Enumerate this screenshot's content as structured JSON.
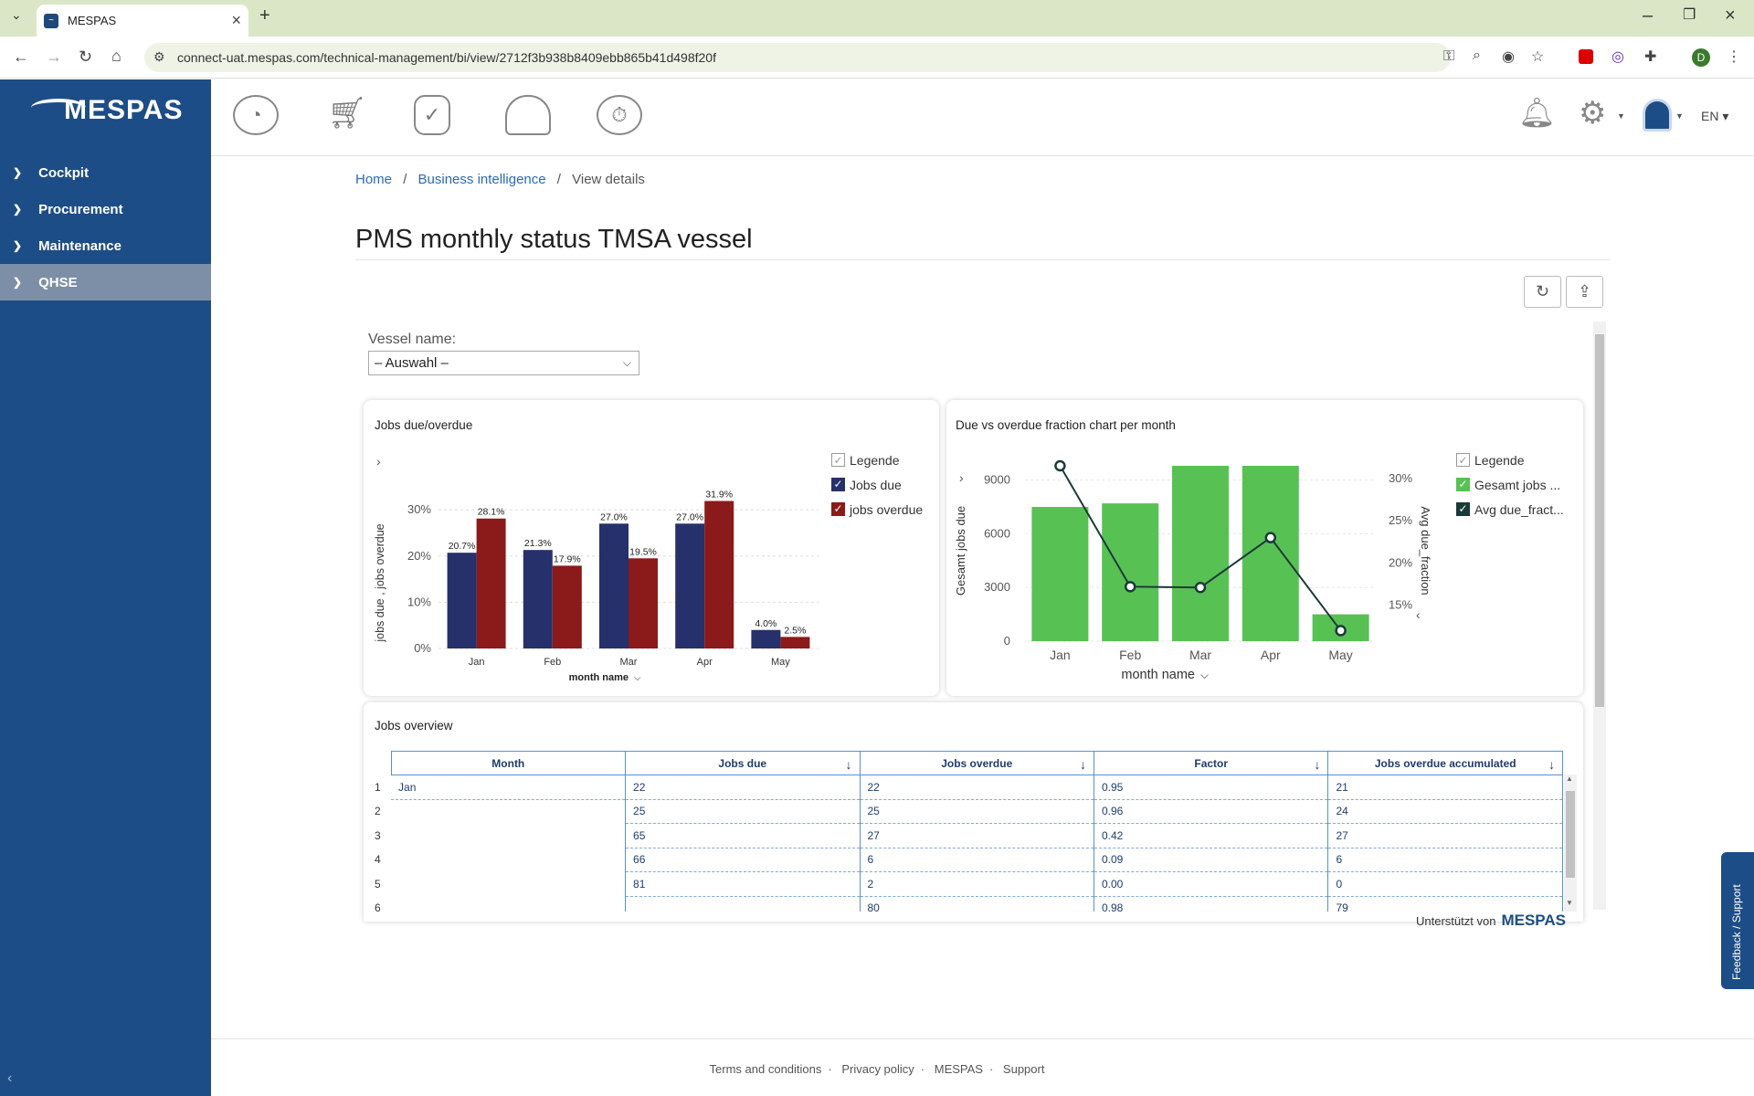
{
  "browser": {
    "tab_title": "MESPAS",
    "url": "connect-uat.mespas.com/technical-management/bi/view/2712f3b938b8409ebb865b41d498f20f",
    "profile_initial": "D"
  },
  "sidebar": {
    "logo": "MESPAS",
    "items": [
      {
        "label": "Cockpit"
      },
      {
        "label": "Procurement"
      },
      {
        "label": "Maintenance"
      },
      {
        "label": "QHSE"
      }
    ]
  },
  "header": {
    "language": "EN",
    "icons": [
      "dashboard-gauge-icon",
      "cart-icon",
      "document-check-icon",
      "hard-hat-icon",
      "stopwatch-gear-icon"
    ]
  },
  "breadcrumb": [
    "Home",
    "Business intelligence",
    "View details"
  ],
  "page_title": "PMS monthly status TMSA vessel",
  "filter": {
    "label": "Vessel name:",
    "value": "– Auswahl –"
  },
  "colors": {
    "jobs_due": "#26306a",
    "jobs_overdue": "#8b1a1a",
    "green": "#58c154",
    "line": "#1a3a3a",
    "sidebar": "#1d4d86"
  },
  "chart_data": [
    {
      "type": "bar",
      "title": "Jobs due/overdue",
      "xlabel": "month name",
      "ylabel": "jobs due , jobs overdue",
      "categories": [
        "Jan",
        "Feb",
        "Mar",
        "Apr",
        "May"
      ],
      "series": [
        {
          "name": "Jobs due",
          "values": [
            20.7,
            21.3,
            27.0,
            27.0,
            4.0
          ],
          "labels": [
            "20.7%",
            "21.3%",
            "27.0%",
            "27.0%",
            "4.0%"
          ]
        },
        {
          "name": "jobs overdue",
          "values": [
            28.1,
            17.9,
            19.5,
            31.9,
            2.5
          ],
          "labels": [
            "28.1%",
            "17.9%",
            "19.5%",
            "31.9%",
            "2.5%"
          ]
        }
      ],
      "yticks": [
        "0%",
        "10%",
        "20%",
        "30%"
      ],
      "ylim": [
        0,
        32
      ],
      "legend_title": "Legende",
      "legend": "right"
    },
    {
      "type": "bar",
      "title": "Due vs overdue fraction chart per month",
      "xlabel": "month name",
      "ylabel": "Gesamt jobs due",
      "y2label": "Avg due_fraction",
      "categories": [
        "Jan",
        "Feb",
        "Mar",
        "Apr",
        "May"
      ],
      "series": [
        {
          "name": "Gesamt jobs ...",
          "type": "bar",
          "values": [
            7500,
            7700,
            9800,
            9800,
            1500
          ]
        },
        {
          "name": "Avg due_fract...",
          "type": "line",
          "values": [
            31.5,
            17.2,
            17.1,
            23.0,
            12.0
          ]
        }
      ],
      "yticks": [
        "0",
        "3000",
        "6000",
        "9000"
      ],
      "y2ticks": [
        "15%",
        "20%",
        "25%",
        "30%"
      ],
      "ylim": [
        0,
        9800
      ],
      "y2lim": [
        10.75,
        31.5
      ],
      "legend_title": "Legende",
      "legend": "right"
    }
  ],
  "jobs_overview": {
    "title": "Jobs overview",
    "columns": [
      "Month",
      "Jobs due",
      "Jobs overdue",
      "Factor",
      "Jobs overdue accumulated"
    ],
    "rows": [
      {
        "n": "1",
        "month": "Jan",
        "due": "22",
        "overdue": "22",
        "factor": "0.95",
        "acc": "21"
      },
      {
        "n": "2",
        "month": "",
        "due": "25",
        "overdue": "25",
        "factor": "0.96",
        "acc": "24"
      },
      {
        "n": "3",
        "month": "",
        "due": "65",
        "overdue": "27",
        "factor": "0.42",
        "acc": "27"
      },
      {
        "n": "4",
        "month": "",
        "due": "66",
        "overdue": "6",
        "factor": "0.09",
        "acc": "6"
      },
      {
        "n": "5",
        "month": "",
        "due": "81",
        "overdue": "2",
        "factor": "0.00",
        "acc": "0"
      },
      {
        "n": "6",
        "month": "",
        "due": "",
        "overdue": "80",
        "factor": "0.98",
        "acc": "79"
      }
    ]
  },
  "powered_by": {
    "text": "Unterstützt von",
    "brand": "MESPAS"
  },
  "footer": [
    "Terms and conditions",
    "Privacy policy",
    "MESPAS",
    "Support"
  ],
  "feedback": "Feedback / Support"
}
